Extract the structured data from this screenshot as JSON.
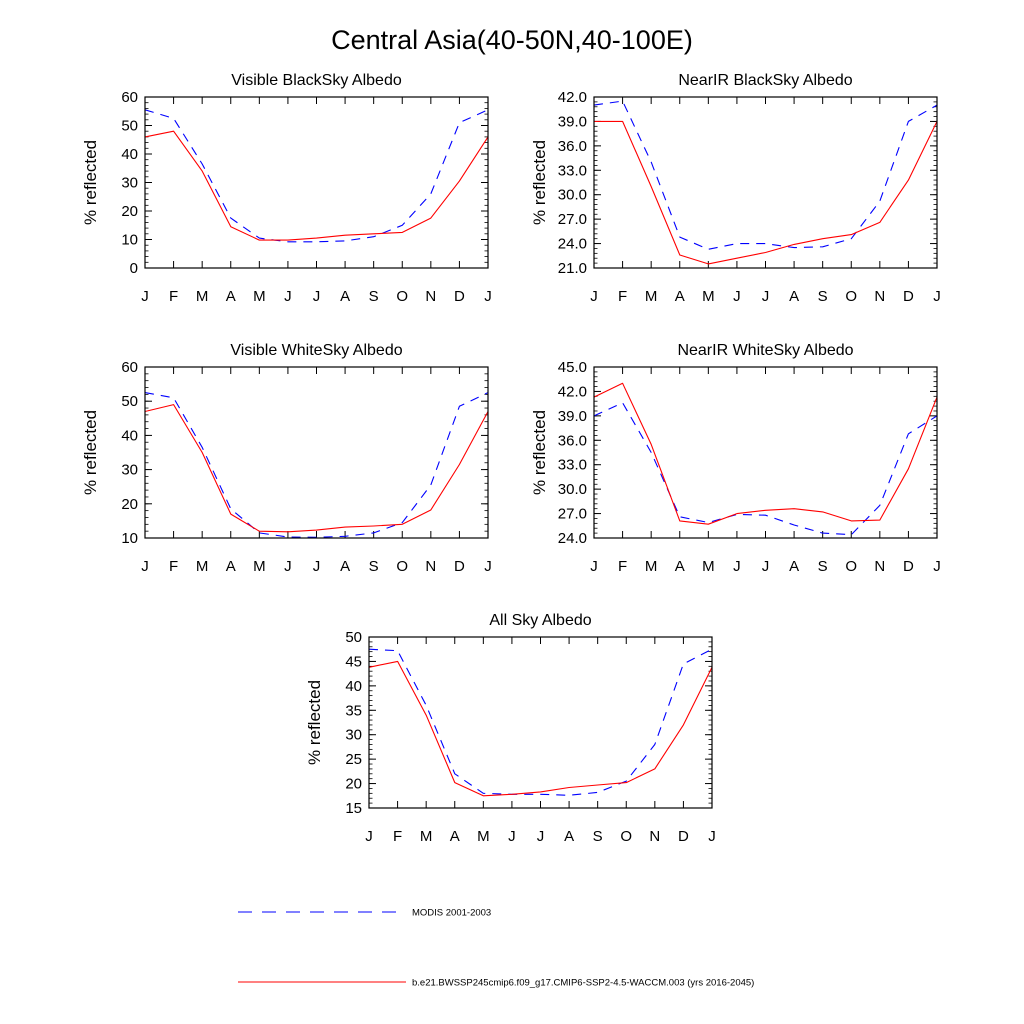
{
  "title": "Central Asia(40-50N,40-100E)",
  "colors": {
    "modis": "#0000ff",
    "model": "#ff0000",
    "axis": "#000000"
  },
  "legend": [
    {
      "key": "modis",
      "label": "MODIS 2001-2003",
      "style": "dashed"
    },
    {
      "key": "model",
      "label": "b.e21.BWSSP245cmip6.f09_g17.CMIP6-SSP2-4.5-WACCM.003 (yrs 2016-2045)",
      "style": "solid"
    }
  ],
  "chart_data": [
    {
      "type": "line",
      "title": "Visible BlackSky Albedo",
      "ylabel": "% reflected",
      "xlabel": "",
      "categories": [
        "J",
        "F",
        "M",
        "A",
        "M",
        "J",
        "J",
        "A",
        "S",
        "O",
        "N",
        "D",
        "J"
      ],
      "ylim": [
        0,
        60
      ],
      "yticks": [
        "0",
        "10",
        "20",
        "30",
        "40",
        "50",
        "60"
      ],
      "series": [
        {
          "name": "MODIS 2001-2003",
          "key": "modis",
          "style": "dashed",
          "values": [
            55.5,
            52.5,
            36.5,
            17.5,
            10.5,
            9.2,
            9.2,
            9.5,
            11.0,
            15.0,
            26.0,
            51.0,
            55.5
          ]
        },
        {
          "name": "b.e21.BWSSP245cmip6.f09_g17.CMIP6-SSP2-4.5-WACCM.003 (yrs 2016-2045)",
          "key": "model",
          "style": "solid",
          "values": [
            46.0,
            48.0,
            34.0,
            14.5,
            9.8,
            9.8,
            10.5,
            11.5,
            12.0,
            12.5,
            17.5,
            30.5,
            46.0
          ]
        }
      ]
    },
    {
      "type": "line",
      "title": "NearIR BlackSky Albedo",
      "ylabel": "% reflected",
      "xlabel": "",
      "categories": [
        "J",
        "F",
        "M",
        "A",
        "M",
        "J",
        "J",
        "A",
        "S",
        "O",
        "N",
        "D",
        "J"
      ],
      "ylim": [
        21.0,
        42.0
      ],
      "yticks": [
        "21.0",
        "24.0",
        "27.0",
        "30.0",
        "33.0",
        "36.0",
        "39.0",
        "42.0"
      ],
      "series": [
        {
          "name": "MODIS 2001-2003",
          "key": "modis",
          "style": "dashed",
          "values": [
            41.0,
            41.5,
            34.0,
            24.8,
            23.3,
            24.0,
            24.0,
            23.5,
            23.6,
            24.6,
            29.2,
            39.0,
            41.0
          ]
        },
        {
          "name": "b.e21.BWSSP245cmip6.f09_g17.CMIP6-SSP2-4.5-WACCM.003 (yrs 2016-2045)",
          "key": "model",
          "style": "solid",
          "values": [
            39.0,
            39.0,
            31.0,
            22.6,
            21.5,
            22.2,
            22.9,
            23.9,
            24.6,
            25.1,
            26.6,
            31.8,
            39.0
          ]
        }
      ]
    },
    {
      "type": "line",
      "title": "Visible WhiteSky Albedo",
      "ylabel": "% reflected",
      "xlabel": "",
      "categories": [
        "J",
        "F",
        "M",
        "A",
        "M",
        "J",
        "J",
        "A",
        "S",
        "O",
        "N",
        "D",
        "J"
      ],
      "ylim": [
        10,
        60
      ],
      "yticks": [
        "10",
        "20",
        "30",
        "40",
        "50",
        "60"
      ],
      "series": [
        {
          "name": "MODIS 2001-2003",
          "key": "modis",
          "style": "dashed",
          "values": [
            52.5,
            51.0,
            36.5,
            18.5,
            11.5,
            10.3,
            10.2,
            10.5,
            11.5,
            14.5,
            25.5,
            48.5,
            52.5
          ]
        },
        {
          "name": "b.e21.BWSSP245cmip6.f09_g17.CMIP6-SSP2-4.5-WACCM.003 (yrs 2016-2045)",
          "key": "model",
          "style": "solid",
          "values": [
            47.0,
            49.0,
            35.0,
            17.0,
            12.0,
            11.8,
            12.3,
            13.2,
            13.5,
            14.0,
            18.2,
            31.5,
            47.0
          ]
        }
      ]
    },
    {
      "type": "line",
      "title": "NearIR WhiteSky Albedo",
      "ylabel": "% reflected",
      "xlabel": "",
      "categories": [
        "J",
        "F",
        "M",
        "A",
        "M",
        "J",
        "J",
        "A",
        "S",
        "O",
        "N",
        "D",
        "J"
      ],
      "ylim": [
        24.0,
        45.0
      ],
      "yticks": [
        "24.0",
        "27.0",
        "30.0",
        "33.0",
        "36.0",
        "39.0",
        "42.0",
        "45.0"
      ],
      "series": [
        {
          "name": "MODIS 2001-2003",
          "key": "modis",
          "style": "dashed",
          "values": [
            39.0,
            40.6,
            34.5,
            26.6,
            25.9,
            26.9,
            26.8,
            25.6,
            24.6,
            24.4,
            28.0,
            36.8,
            39.0
          ]
        },
        {
          "name": "b.e21.BWSSP245cmip6.f09_g17.CMIP6-SSP2-4.5-WACCM.003 (yrs 2016-2045)",
          "key": "model",
          "style": "solid",
          "values": [
            41.3,
            43.0,
            35.5,
            26.1,
            25.7,
            27.0,
            27.4,
            27.6,
            27.2,
            26.1,
            26.2,
            32.5,
            41.3
          ]
        }
      ]
    },
    {
      "type": "line",
      "title": "All Sky Albedo",
      "ylabel": "% reflected",
      "xlabel": "",
      "categories": [
        "J",
        "F",
        "M",
        "A",
        "M",
        "J",
        "J",
        "A",
        "S",
        "O",
        "N",
        "D",
        "J"
      ],
      "ylim": [
        15,
        50
      ],
      "yticks": [
        "15",
        "20",
        "25",
        "30",
        "35",
        "40",
        "45",
        "50"
      ],
      "series": [
        {
          "name": "MODIS 2001-2003",
          "key": "modis",
          "style": "dashed",
          "values": [
            47.5,
            47.2,
            36.0,
            22.0,
            18.0,
            17.8,
            17.8,
            17.6,
            18.2,
            20.5,
            28.0,
            44.5,
            47.5
          ]
        },
        {
          "name": "b.e21.BWSSP245cmip6.f09_g17.CMIP6-SSP2-4.5-WACCM.003 (yrs 2016-2045)",
          "key": "model",
          "style": "solid",
          "values": [
            43.8,
            45.0,
            34.0,
            20.2,
            17.5,
            17.8,
            18.3,
            19.2,
            19.7,
            20.2,
            23.0,
            32.0,
            43.8
          ]
        }
      ]
    }
  ]
}
